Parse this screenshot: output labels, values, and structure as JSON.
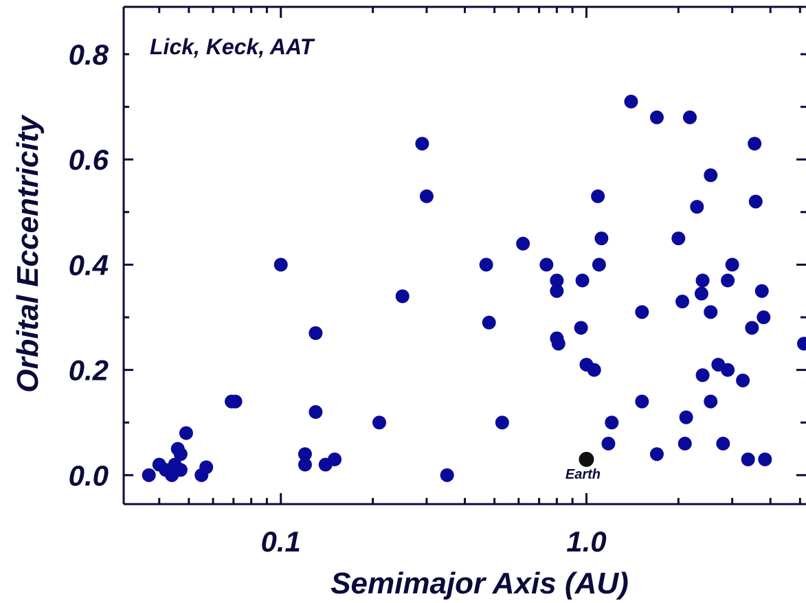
{
  "chart_data": {
    "type": "scatter",
    "title": "",
    "xlabel": "Semimajor Axis  (AU)",
    "ylabel": "Orbital Eccentricity",
    "x_scale": "log",
    "xlim": [
      0.0306,
      5.23
    ],
    "ylim": [
      -0.055,
      0.89
    ],
    "x_tick_labels": [
      {
        "value": 0.1,
        "label": "0.1"
      },
      {
        "value": 1.0,
        "label": "1.0"
      }
    ],
    "y_tick_labels": [
      {
        "value": 0.0,
        "label": "0.0"
      },
      {
        "value": 0.2,
        "label": "0.2"
      },
      {
        "value": 0.4,
        "label": "0.4"
      },
      {
        "value": 0.6,
        "label": "0.6"
      },
      {
        "value": 0.8,
        "label": "0.8"
      }
    ],
    "annotation": "Lick, Keck, AAT",
    "grid": false,
    "colors": {
      "planets": "#0a0a9a",
      "earth": "#111111",
      "axis": "#0b0b3b"
    },
    "series": [
      {
        "points": [
          [
            0.037,
            0.0
          ],
          [
            0.04,
            0.02
          ],
          [
            0.042,
            0.01
          ],
          [
            0.044,
            0.0
          ],
          [
            0.045,
            0.02
          ],
          [
            0.046,
            0.05
          ],
          [
            0.047,
            0.04
          ],
          [
            0.047,
            0.01
          ],
          [
            0.049,
            0.08
          ],
          [
            0.055,
            0.0
          ],
          [
            0.057,
            0.015
          ],
          [
            0.069,
            0.14
          ],
          [
            0.071,
            0.14
          ],
          [
            0.1,
            0.4
          ],
          [
            0.12,
            0.04
          ],
          [
            0.12,
            0.02
          ],
          [
            0.13,
            0.12
          ],
          [
            0.13,
            0.27
          ],
          [
            0.14,
            0.02
          ],
          [
            0.15,
            0.03
          ],
          [
            0.21,
            0.1
          ],
          [
            0.25,
            0.34
          ],
          [
            0.29,
            0.63
          ],
          [
            0.3,
            0.53
          ],
          [
            0.35,
            0.0
          ],
          [
            0.47,
            0.4
          ],
          [
            0.48,
            0.29
          ],
          [
            0.53,
            0.1
          ],
          [
            0.62,
            0.44
          ],
          [
            0.74,
            0.4
          ],
          [
            0.8,
            0.37
          ],
          [
            0.8,
            0.35
          ],
          [
            0.8,
            0.26
          ],
          [
            0.81,
            0.25
          ],
          [
            0.97,
            0.37
          ],
          [
            0.96,
            0.28
          ],
          [
            1.0,
            0.21
          ],
          [
            1.06,
            0.2
          ],
          [
            1.09,
            0.53
          ],
          [
            1.12,
            0.45
          ],
          [
            1.1,
            0.4
          ],
          [
            1.18,
            0.06
          ],
          [
            1.21,
            0.1
          ],
          [
            1.4,
            0.71
          ],
          [
            1.52,
            0.31
          ],
          [
            1.52,
            0.14
          ],
          [
            1.7,
            0.68
          ],
          [
            1.7,
            0.04
          ],
          [
            2.0,
            0.45
          ],
          [
            2.06,
            0.33
          ],
          [
            2.1,
            0.06
          ],
          [
            2.12,
            0.11
          ],
          [
            2.18,
            0.68
          ],
          [
            2.3,
            0.51
          ],
          [
            2.4,
            0.37
          ],
          [
            2.38,
            0.345
          ],
          [
            2.4,
            0.19
          ],
          [
            2.55,
            0.57
          ],
          [
            2.55,
            0.31
          ],
          [
            2.55,
            0.14
          ],
          [
            2.7,
            0.21
          ],
          [
            2.8,
            0.06
          ],
          [
            2.9,
            0.37
          ],
          [
            2.9,
            0.2
          ],
          [
            3.0,
            0.4
          ],
          [
            3.25,
            0.18
          ],
          [
            3.38,
            0.03
          ],
          [
            3.48,
            0.28
          ],
          [
            3.55,
            0.63
          ],
          [
            3.58,
            0.52
          ],
          [
            3.75,
            0.35
          ],
          [
            3.8,
            0.3
          ],
          [
            3.84,
            0.03
          ],
          [
            5.15,
            0.25
          ]
        ]
      },
      {
        "label": "Earth",
        "points": [
          [
            1.0,
            0.03
          ]
        ]
      }
    ]
  }
}
